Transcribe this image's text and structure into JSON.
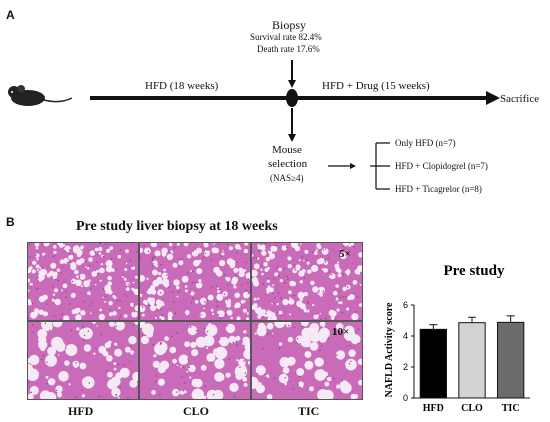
{
  "panel_a": {
    "letter": "A",
    "biopsy": {
      "title": "Biopsy",
      "survival": "Survival rate 82.4%",
      "death": "Death rate 17.6%"
    },
    "phase1": "HFD (18 weeks)",
    "phase2": "HFD + Drug (15 weeks)",
    "end": "Sacrifice",
    "selection": {
      "line1": "Mouse",
      "line2": "selection",
      "criterion": "(NAS≥4)"
    },
    "groups": [
      "Only HFD (n=7)",
      "HFD + Clopidogrel (n=7)",
      "HFD + Ticagrelor (n=8)"
    ]
  },
  "panel_b": {
    "letter": "B",
    "histology_title": "Pre study liver biopsy at 18 weeks",
    "mag_low": "5×",
    "mag_high": "10×",
    "columns": [
      "HFD",
      "CLO",
      "TIC"
    ],
    "colors": {
      "tissue": "#c96bb8",
      "tissue_dark": "#8e3f86",
      "vacuole": "#f4e9f5"
    }
  },
  "chart_data": {
    "type": "bar",
    "title": "Pre study",
    "ylabel": "NAFLD Activity score",
    "xlabel": "",
    "categories": [
      "HFD",
      "CLO",
      "TIC"
    ],
    "values": [
      4.43,
      4.86,
      4.88
    ],
    "errors": [
      0.3,
      0.35,
      0.42
    ],
    "bar_colors": [
      "#000000",
      "#d3d3d3",
      "#6b6b6b"
    ],
    "ylim": [
      0,
      6
    ],
    "yticks": [
      0,
      2,
      4,
      6
    ],
    "grid": false
  }
}
